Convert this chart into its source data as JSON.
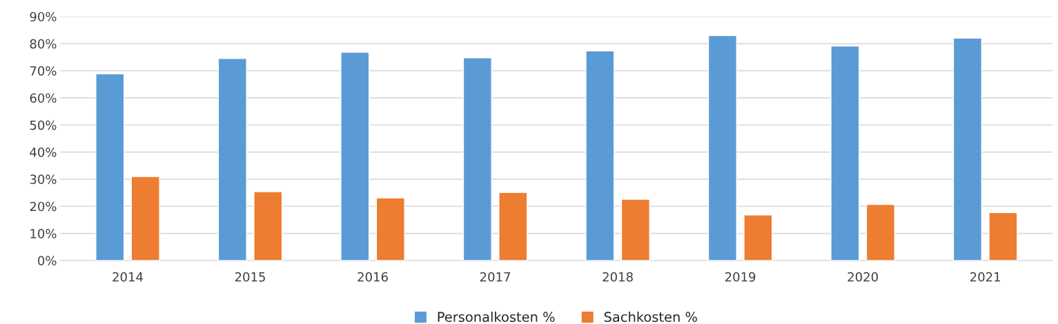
{
  "chart_data": {
    "type": "bar",
    "categories": [
      "2014",
      "2015",
      "2016",
      "2017",
      "2018",
      "2019",
      "2020",
      "2021"
    ],
    "series": [
      {
        "name": "Personalkosten %",
        "color": "#5b9bd5",
        "values": [
          68.9,
          74.5,
          76.8,
          74.8,
          77.3,
          83.0,
          79.1,
          82.0
        ]
      },
      {
        "name": "Sachkosten %",
        "color": "#ed7d31",
        "values": [
          31.0,
          25.4,
          23.1,
          25.1,
          22.6,
          16.8,
          20.7,
          17.7
        ]
      }
    ],
    "ylim": [
      0,
      90
    ],
    "yticks": [
      {
        "value": 0,
        "label": "0%"
      },
      {
        "value": 10,
        "label": "10%"
      },
      {
        "value": 20,
        "label": "20%"
      },
      {
        "value": 30,
        "label": "30%"
      },
      {
        "value": 40,
        "label": "40%"
      },
      {
        "value": 50,
        "label": "50%"
      },
      {
        "value": 60,
        "label": "60%"
      },
      {
        "value": 70,
        "label": "70%"
      },
      {
        "value": 80,
        "label": "80%"
      },
      {
        "value": 90,
        "label": "90%"
      }
    ],
    "grid": "y",
    "legend": "bottom"
  }
}
